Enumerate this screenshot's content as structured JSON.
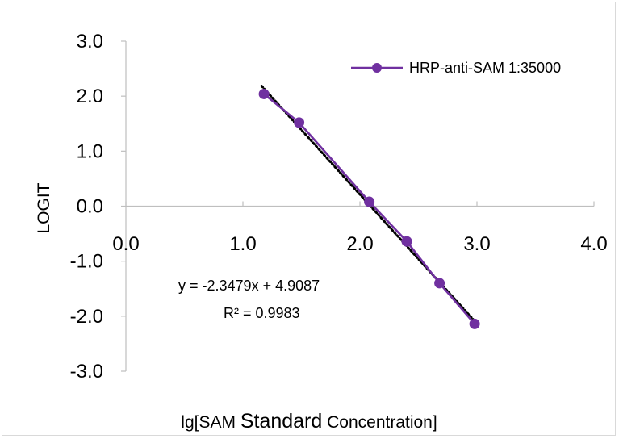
{
  "chart_data": {
    "type": "scatter",
    "xlabel_parts": [
      "lg[SAM ",
      "Standard",
      " Concentration]"
    ],
    "ylabel": "LOGIT",
    "xlim": [
      0,
      4
    ],
    "ylim": [
      -3,
      3
    ],
    "x_tick_labels": [
      "0.0",
      "1.0",
      "2.0",
      "3.0",
      "4.0"
    ],
    "y_tick_labels": [
      "3.0",
      "2.0",
      "1.0",
      "0.0",
      "-1.0",
      "-2.0",
      "-3.0"
    ],
    "grid": false,
    "legend_position": "top-right",
    "series": [
      {
        "name": "HRP-anti-SAM 1:35000",
        "color": "#7030a0",
        "marker": "circle",
        "x": [
          1.18,
          1.48,
          2.08,
          2.4,
          2.68,
          2.98
        ],
        "y": [
          2.04,
          1.52,
          0.08,
          -0.64,
          -1.4,
          -2.14
        ]
      }
    ],
    "trendline": {
      "type": "linear",
      "slope": -2.3479,
      "intercept": 4.9087,
      "style": "dotted",
      "color": "#000000",
      "equation_label": "y = -2.3479x + 4.9087",
      "r2_label": "R² = 0.9983"
    }
  }
}
